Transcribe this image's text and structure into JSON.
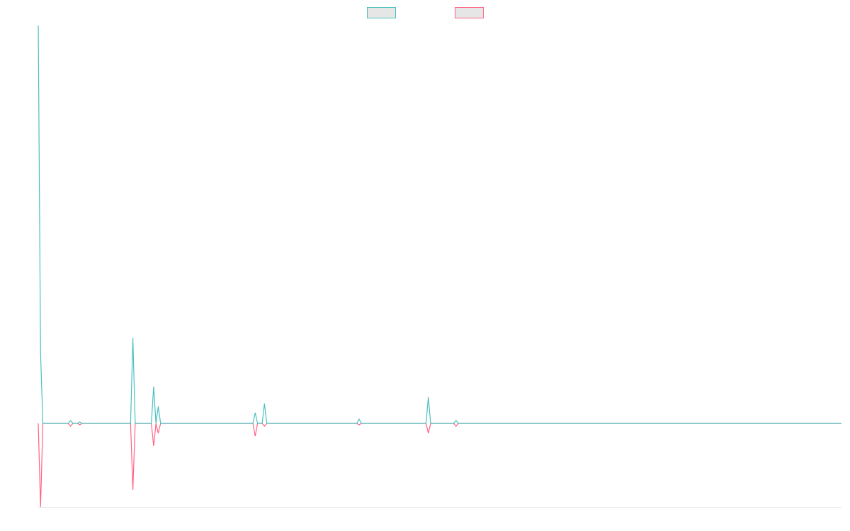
{
  "chart_data": {
    "type": "line",
    "x": [
      0,
      1,
      2,
      13,
      14,
      15,
      17,
      18,
      19,
      40,
      41,
      42,
      49,
      50,
      51,
      52,
      53,
      93,
      94,
      95,
      97,
      98,
      99,
      138,
      139,
      140,
      168,
      169,
      170,
      180,
      181,
      182,
      348
    ],
    "xlim": [
      0,
      348
    ],
    "ylim": [
      -118,
      562
    ],
    "legend": "top",
    "series": [
      {
        "color": "#4bc0c0",
        "values": [
          562,
          100,
          0,
          0,
          4,
          0,
          0,
          2,
          0,
          0,
          121,
          0,
          0,
          52,
          0,
          24,
          0,
          0,
          15,
          0,
          0,
          28,
          0,
          0,
          6,
          0,
          0,
          37,
          0,
          0,
          4,
          0,
          0
        ]
      },
      {
        "color": "#ff6384",
        "values": [
          0,
          -118,
          0,
          0,
          -4,
          0,
          0,
          -2,
          0,
          0,
          -94,
          0,
          0,
          -32,
          0,
          -14,
          0,
          0,
          -18,
          0,
          0,
          -4,
          0,
          0,
          -2,
          0,
          0,
          -14,
          0,
          0,
          -4,
          0,
          0
        ]
      }
    ]
  }
}
